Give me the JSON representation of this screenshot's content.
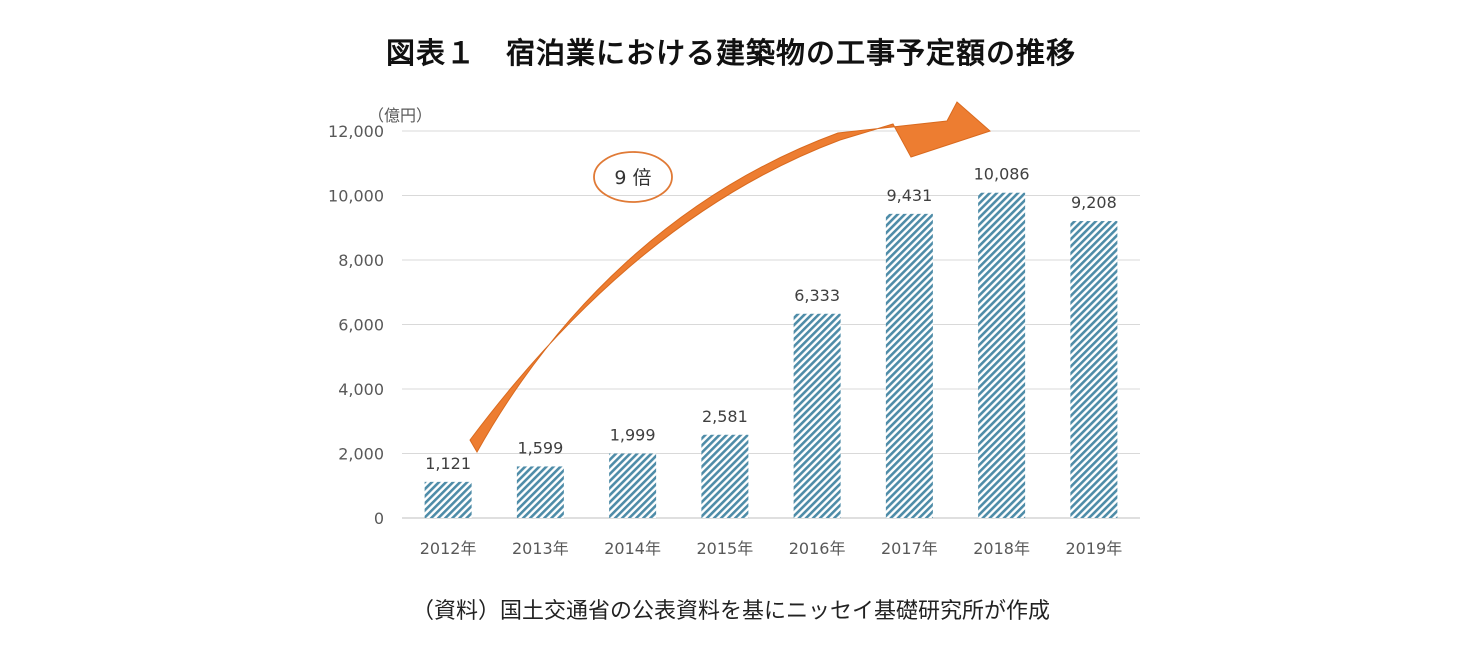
{
  "chart_data": {
    "type": "bar",
    "title": "図表１　宿泊業における建築物の工事予定額の推移",
    "unit_label": "（億円）",
    "categories": [
      "2012年",
      "2013年",
      "2014年",
      "2015年",
      "2016年",
      "2017年",
      "2018年",
      "2019年"
    ],
    "values": [
      1121,
      1599,
      1999,
      2581,
      6333,
      9431,
      10086,
      9208
    ],
    "value_labels": [
      "1,121",
      "1,599",
      "1,999",
      "2,581",
      "6,333",
      "9,431",
      "10,086",
      "9,208"
    ],
    "ylim": [
      0,
      12000
    ],
    "yticks": [
      0,
      2000,
      4000,
      6000,
      8000,
      10000,
      12000
    ],
    "ytick_labels": [
      "0",
      "2,000",
      "4,000",
      "6,000",
      "8,000",
      "10,000",
      "12,000"
    ],
    "grid": true,
    "bar_color": "#4e8ca8",
    "arrow_color": "#ed7d31",
    "annotation": "9 倍",
    "source": "（資料）国土交通省の公表資料を基にニッセイ基礎研究所が作成"
  }
}
